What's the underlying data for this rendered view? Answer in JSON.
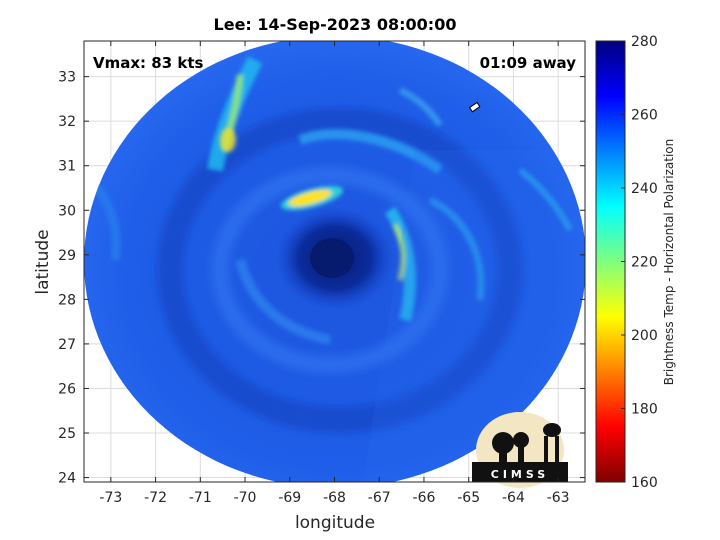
{
  "chart_data": {
    "type": "heatmap",
    "title": "Lee: 14-Sep-2023 08:00:00",
    "xlabel": "longitude",
    "ylabel": "latitude",
    "xlim": [
      -73.6,
      -62.4
    ],
    "ylim": [
      23.9,
      33.8
    ],
    "xticks": [
      -73,
      -72,
      -71,
      -70,
      -69,
      -68,
      -67,
      -66,
      -65,
      -64,
      -63
    ],
    "yticks": [
      24,
      25,
      26,
      27,
      28,
      29,
      30,
      31,
      32,
      33
    ],
    "grid": true,
    "annotations": {
      "vmax": "Vmax: 83 kts",
      "time_away": "01:09 away"
    },
    "storm_center": {
      "lon": -68.2,
      "lat": 28.9
    },
    "colorbar": {
      "label": "Brightness Temp - Horizontal Polarization",
      "range": [
        160,
        280
      ],
      "ticks": [
        160,
        180,
        200,
        220,
        240,
        260,
        280
      ],
      "colormap": "jet"
    },
    "logo_text": "CIMSS"
  },
  "colors": {
    "background_field": "#1f5ee8",
    "deep_blue": "#0a2fa8",
    "eye_dark": "#061a6e",
    "cyan_band": "#19c8f0",
    "warm_band": "#ffe21a"
  }
}
